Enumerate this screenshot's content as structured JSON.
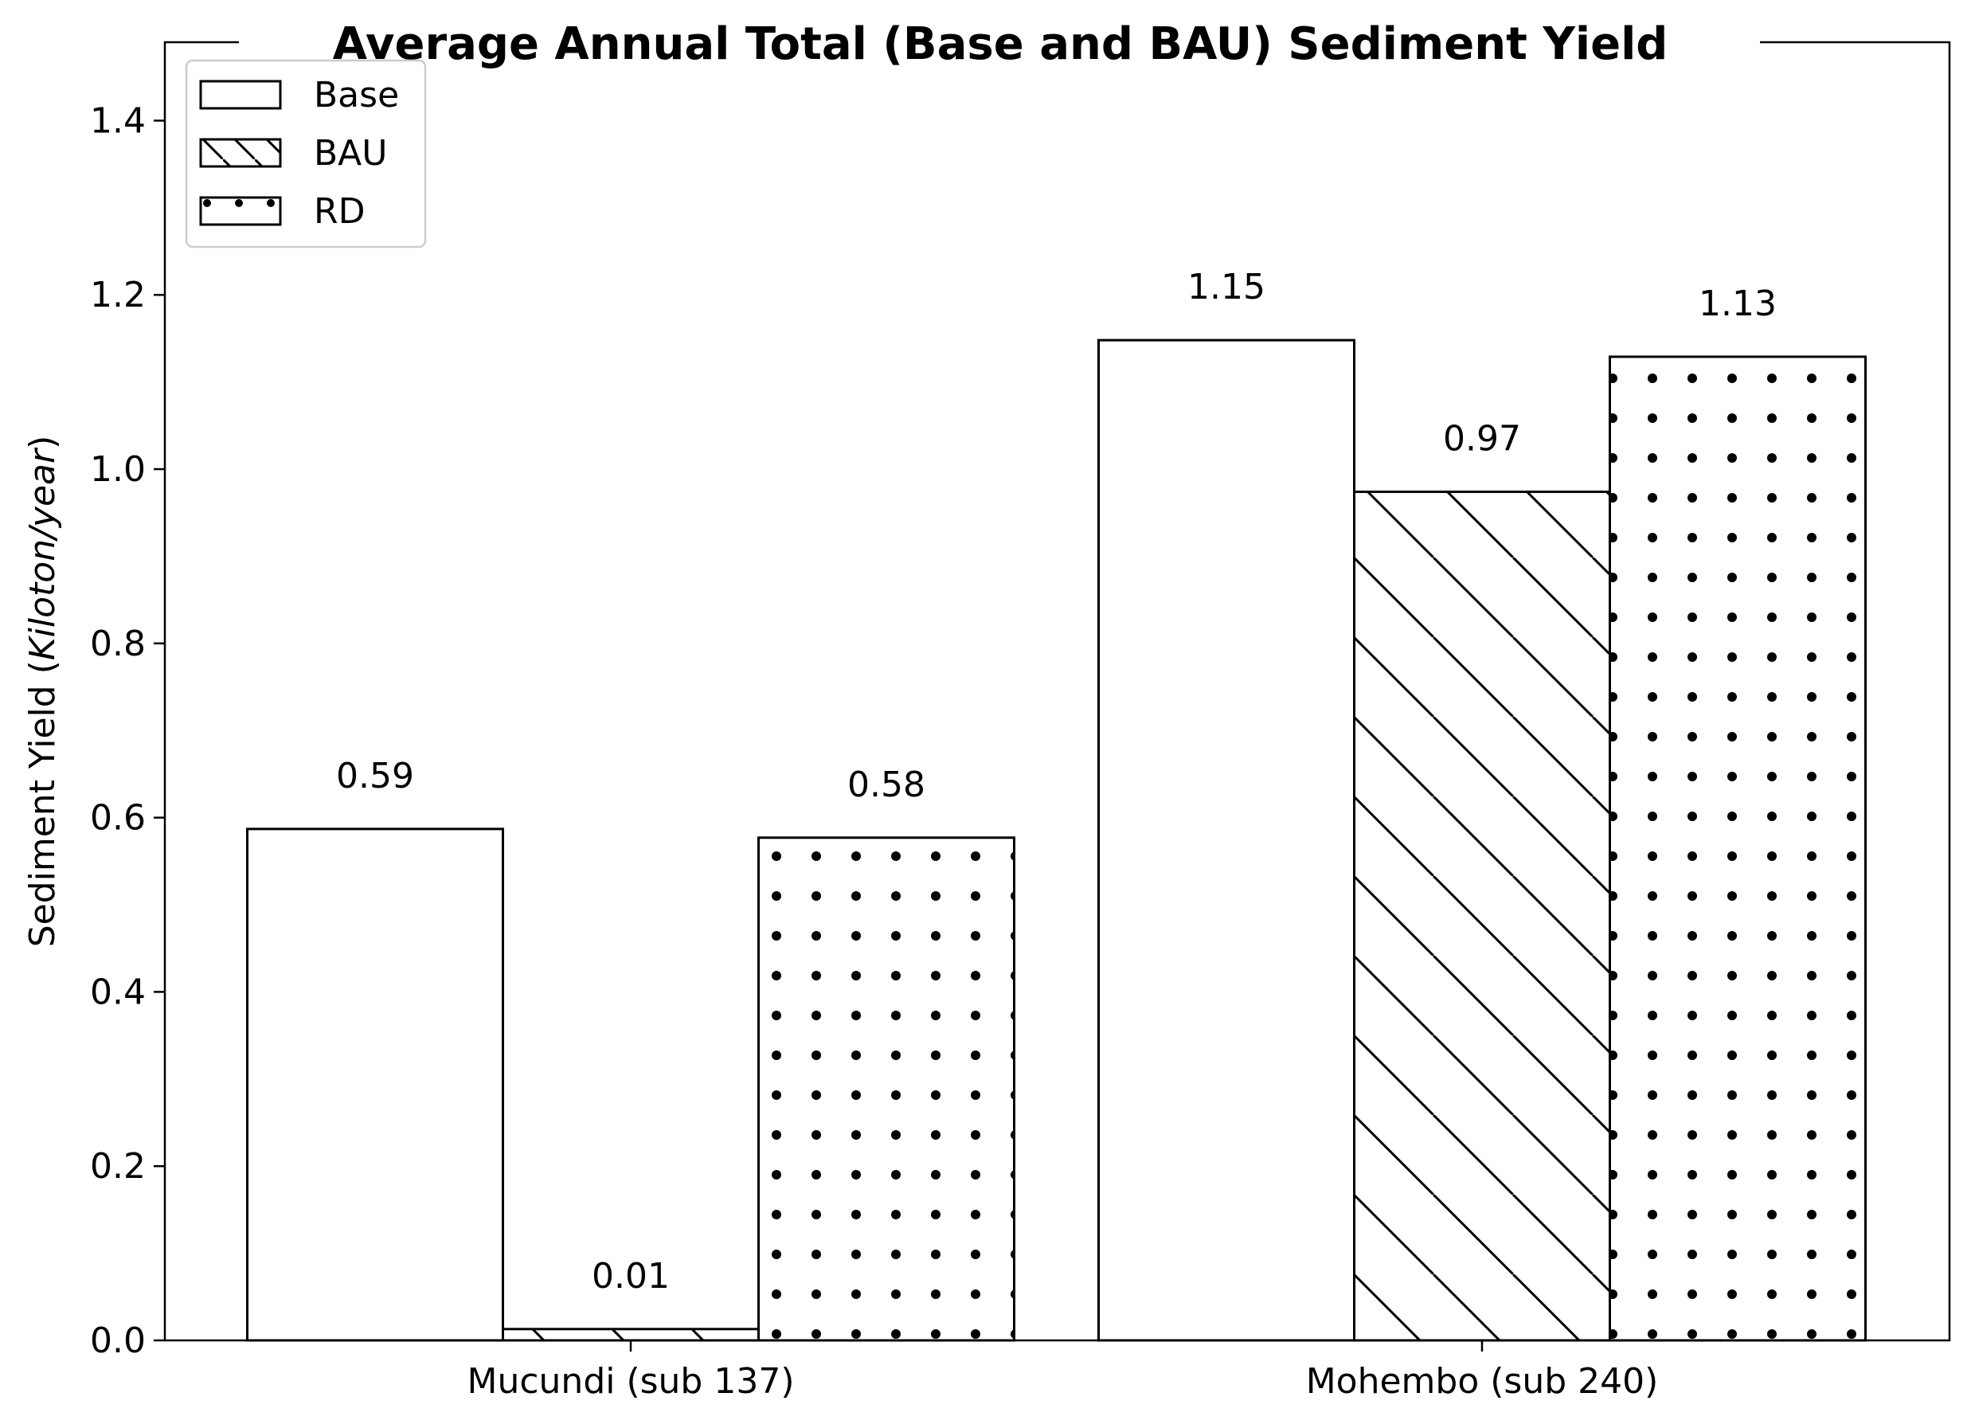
{
  "chart_data": {
    "type": "bar",
    "title": "Average Annual Total (Base and BAU) Sediment Yield",
    "xlabel": "",
    "ylabel_prefix": "Sediment Yield (",
    "ylabel_unit": "Kiloton/year",
    "ylabel_suffix": ")",
    "categories": [
      "Mucundi (sub 137)",
      "Mohembo (sub 240)"
    ],
    "series": [
      {
        "name": "Base",
        "values": [
          0.587,
          1.148
        ],
        "labels": [
          "0.59",
          "1.15"
        ],
        "pattern": "none"
      },
      {
        "name": "BAU",
        "values": [
          0.013,
          0.974
        ],
        "labels": [
          "0.01",
          "0.97"
        ],
        "pattern": "diagonal-hatch"
      },
      {
        "name": "RD",
        "values": [
          0.577,
          1.129
        ],
        "labels": [
          "0.58",
          "1.13"
        ],
        "pattern": "dots"
      }
    ],
    "ylim": [
      0,
      1.49
    ],
    "yticks": [
      0.0,
      0.2,
      0.4,
      0.6,
      0.8,
      1.0,
      1.2,
      1.4
    ],
    "ytick_labels": [
      "0.0",
      "0.2",
      "0.4",
      "0.6",
      "0.8",
      "1.0",
      "1.2",
      "1.4"
    ],
    "grid": false,
    "legend_position": "top-left",
    "bar_fill": "#ffffff",
    "bar_edge": "#000000"
  }
}
